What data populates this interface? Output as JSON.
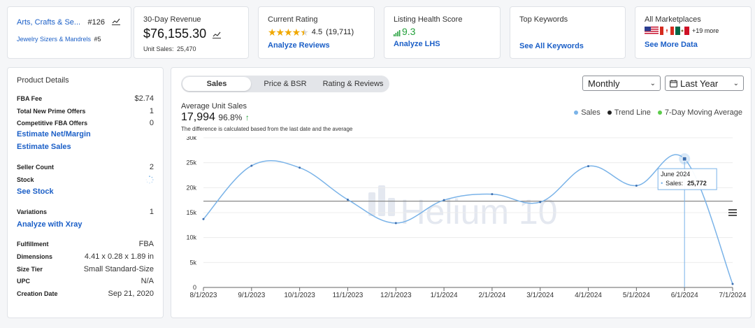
{
  "cards": {
    "category": {
      "name": "Arts, Crafts & Se...",
      "rank": "#126",
      "subcategory": "Jewelry Sizers & Mandrels",
      "subrank": "#5"
    },
    "revenue": {
      "label": "30-Day Revenue",
      "value": "$76,155.30",
      "units_label": "Unit Sales:",
      "units_value": "25,470"
    },
    "rating": {
      "label": "Current Rating",
      "value": "4.5",
      "count": "(19,711)",
      "link": "Analyze Reviews",
      "stars": 4.5
    },
    "lhs": {
      "label": "Listing Health Score",
      "value": "9.3",
      "link": "Analyze LHS"
    },
    "keywords": {
      "label": "Top Keywords",
      "link": "See All Keywords"
    },
    "marketplaces": {
      "label": "All Marketplaces",
      "more": "+19 more",
      "link": "See More Data"
    }
  },
  "product_details": {
    "title": "Product Details",
    "fba_fee": {
      "label": "FBA Fee",
      "value": "$2.74"
    },
    "prime_offers": {
      "label": "Total New Prime Offers",
      "value": "1"
    },
    "fba_offers": {
      "label": "Competitive FBA Offers",
      "value": "0"
    },
    "link_margin": "Estimate Net/Margin",
    "link_sales": "Estimate Sales",
    "seller_count": {
      "label": "Seller Count",
      "value": "2"
    },
    "stock": {
      "label": "Stock"
    },
    "link_stock": "See Stock",
    "variations": {
      "label": "Variations",
      "value": "1"
    },
    "link_xray": "Analyze with Xray",
    "fulfillment": {
      "label": "Fulfillment",
      "value": "FBA"
    },
    "dimensions": {
      "label": "Dimensions",
      "value": "4.41 x 0.28 x 1.89 in"
    },
    "size_tier": {
      "label": "Size Tier",
      "value": "Small Standard-Size"
    },
    "upc": {
      "label": "UPC",
      "value": "N/A"
    },
    "creation_date": {
      "label": "Creation Date",
      "value": "Sep 21, 2020"
    }
  },
  "chart_panel": {
    "tabs": [
      "Sales",
      "Price & BSR",
      "Rating & Reviews"
    ],
    "interval": "Monthly",
    "range": "Last Year",
    "avg_label": "Average Unit Sales",
    "avg_value": "17,994",
    "avg_change": "96.8%",
    "note": "The difference is calculated based from the last date and the average",
    "legend": [
      "Sales",
      "Trend Line",
      "7-Day Moving Average"
    ],
    "watermark": "Helium 10",
    "tooltip_title": "June 2024",
    "tooltip_label": "Sales:",
    "tooltip_value": "25,772"
  },
  "colors": {
    "link": "#1b5fc7",
    "sales": "#7ab3e8",
    "trend": "#222222",
    "moving_avg": "#5ccc4a",
    "lhs": "#23a03a"
  },
  "chart_data": {
    "type": "line",
    "categories": [
      "8/1/2023",
      "9/1/2023",
      "10/1/2023",
      "11/1/2023",
      "12/1/2023",
      "1/1/2024",
      "2/1/2024",
      "3/1/2024",
      "4/1/2024",
      "5/1/2024",
      "6/1/2024",
      "7/1/2024"
    ],
    "series": [
      {
        "name": "Sales",
        "values": [
          13700,
          24400,
          24000,
          17600,
          12900,
          17500,
          18700,
          17100,
          24300,
          20400,
          25772,
          700
        ]
      },
      {
        "name": "Trend Line",
        "values": [
          17300,
          17300,
          17300,
          17300,
          17300,
          17300,
          17300,
          17300,
          17300,
          17300,
          17300,
          17300
        ]
      }
    ],
    "yticks": [
      "0",
      "5k",
      "10k",
      "15k",
      "20k",
      "25k",
      "30k"
    ],
    "ylim": [
      0,
      30000
    ],
    "grid": true,
    "legend_position": "top-right"
  }
}
